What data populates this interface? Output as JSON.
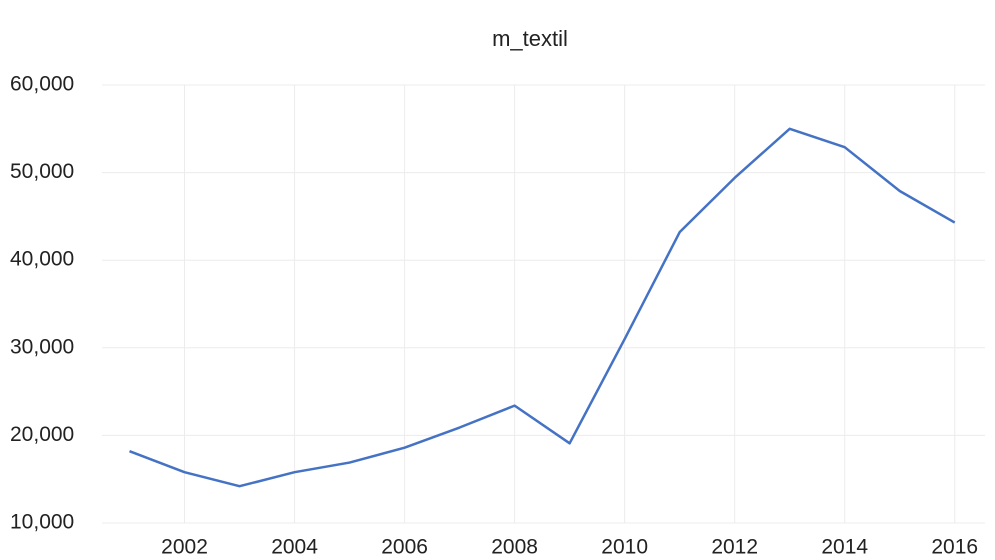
{
  "chart_data": {
    "type": "line",
    "title": "m_textil",
    "x": [
      2001,
      2002,
      2003,
      2004,
      2005,
      2006,
      2007,
      2008,
      2009,
      2010,
      2011,
      2012,
      2013,
      2014,
      2015,
      2016
    ],
    "series": [
      {
        "name": "m_textil",
        "color": "#4472c4",
        "values": [
          18200,
          15800,
          14200,
          15800,
          16900,
          18600,
          20900,
          23400,
          19100,
          31000,
          43200,
          49400,
          55000,
          52900,
          47900,
          44300
        ]
      }
    ],
    "xlim": [
      2000.5,
      2016.55
    ],
    "xticks": [
      2002,
      2004,
      2006,
      2008,
      2010,
      2012,
      2014,
      2016
    ],
    "ylim": [
      10000,
      60000
    ],
    "yticks": [
      {
        "value": 10000,
        "label": "10,000"
      },
      {
        "value": 20000,
        "label": "20,000"
      },
      {
        "value": 30000,
        "label": "30,000"
      },
      {
        "value": 40000,
        "label": "40,000"
      },
      {
        "value": 50000,
        "label": "50,000"
      },
      {
        "value": 60000,
        "label": "60,000"
      }
    ],
    "grid": true
  }
}
